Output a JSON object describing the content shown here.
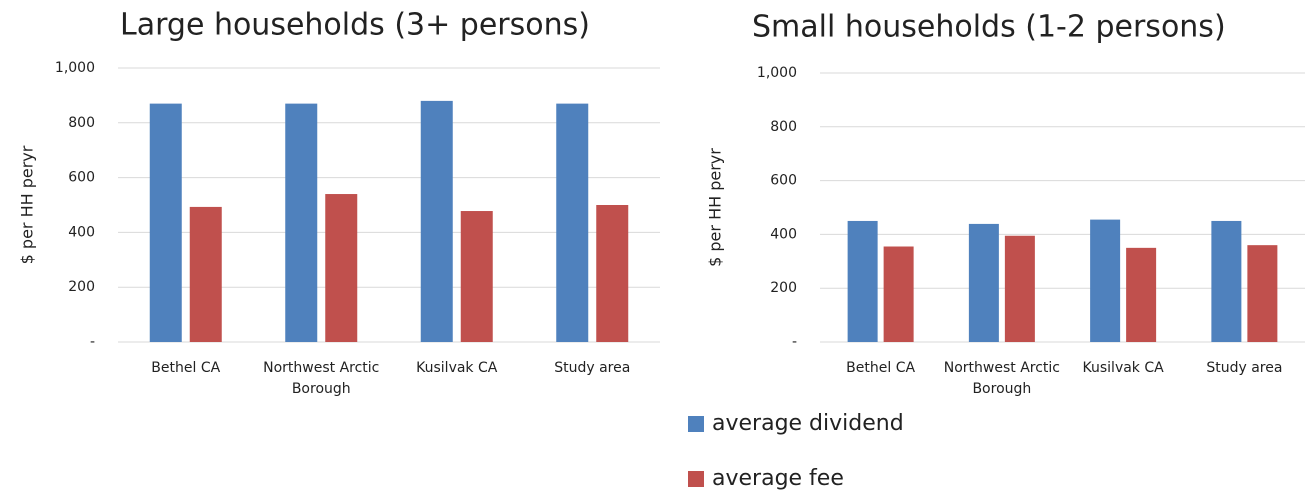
{
  "chart_data": [
    {
      "type": "bar",
      "title": "Large households (3+ persons)",
      "y_label": "$ per HH peryr",
      "categories": [
        "Bethel CA",
        "Northwest Arctic Borough",
        "Kusilvak CA",
        "Study area"
      ],
      "series": [
        {
          "name": "average dividend",
          "color": "#4f81bd",
          "values": [
            870,
            870,
            880,
            870
          ]
        },
        {
          "name": "average fee",
          "color": "#c0504d",
          "values": [
            493,
            540,
            478,
            500
          ]
        }
      ],
      "ylim": [
        0,
        1000
      ],
      "yticks": [
        {
          "value": 0,
          "label": "-"
        },
        200,
        400,
        600,
        800,
        {
          "value": 1000,
          "label": "1,000"
        }
      ],
      "grid": true
    },
    {
      "type": "bar",
      "title": "Small households (1-2 persons)",
      "y_label": "$ per HH peryr",
      "categories": [
        "Bethel CA",
        "Northwest Arctic Borough",
        "Kusilvak  CA",
        "Study area"
      ],
      "series": [
        {
          "color": "#4f81bd",
          "values": [
            450,
            439,
            455,
            450
          ]
        },
        {
          "color": "#c0504d",
          "values": [
            355,
            395,
            350,
            360
          ]
        }
      ],
      "ylim": [
        0,
        1000
      ],
      "yticks": [
        {
          "value": 0,
          "label": "-"
        },
        200,
        400,
        600,
        800,
        {
          "value": 1000,
          "label": "1,000"
        }
      ],
      "grid": true
    }
  ]
}
